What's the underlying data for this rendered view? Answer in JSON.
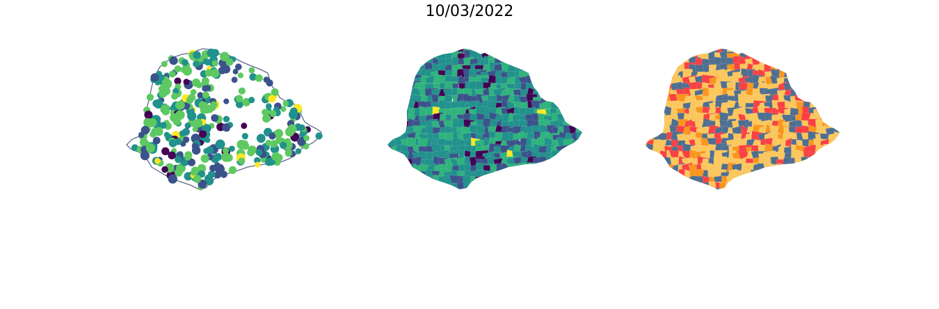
{
  "figure": {
    "title": "10/03/2022"
  },
  "colors": {
    "viridis": [
      "#440154",
      "#3b528b",
      "#21918c",
      "#5ec962",
      "#fde725"
    ],
    "outline": "#5a6a8a",
    "category": [
      "#fbc65c",
      "#4f6f91",
      "#f94144",
      "#f8961e"
    ]
  },
  "panels": [
    {
      "kind": "point-map",
      "description_icon": "map-points"
    },
    {
      "kind": "choropleth-continuous",
      "description_icon": "map-choropleth"
    },
    {
      "kind": "choropleth-categorical",
      "description_icon": "map-categorical"
    }
  ]
}
